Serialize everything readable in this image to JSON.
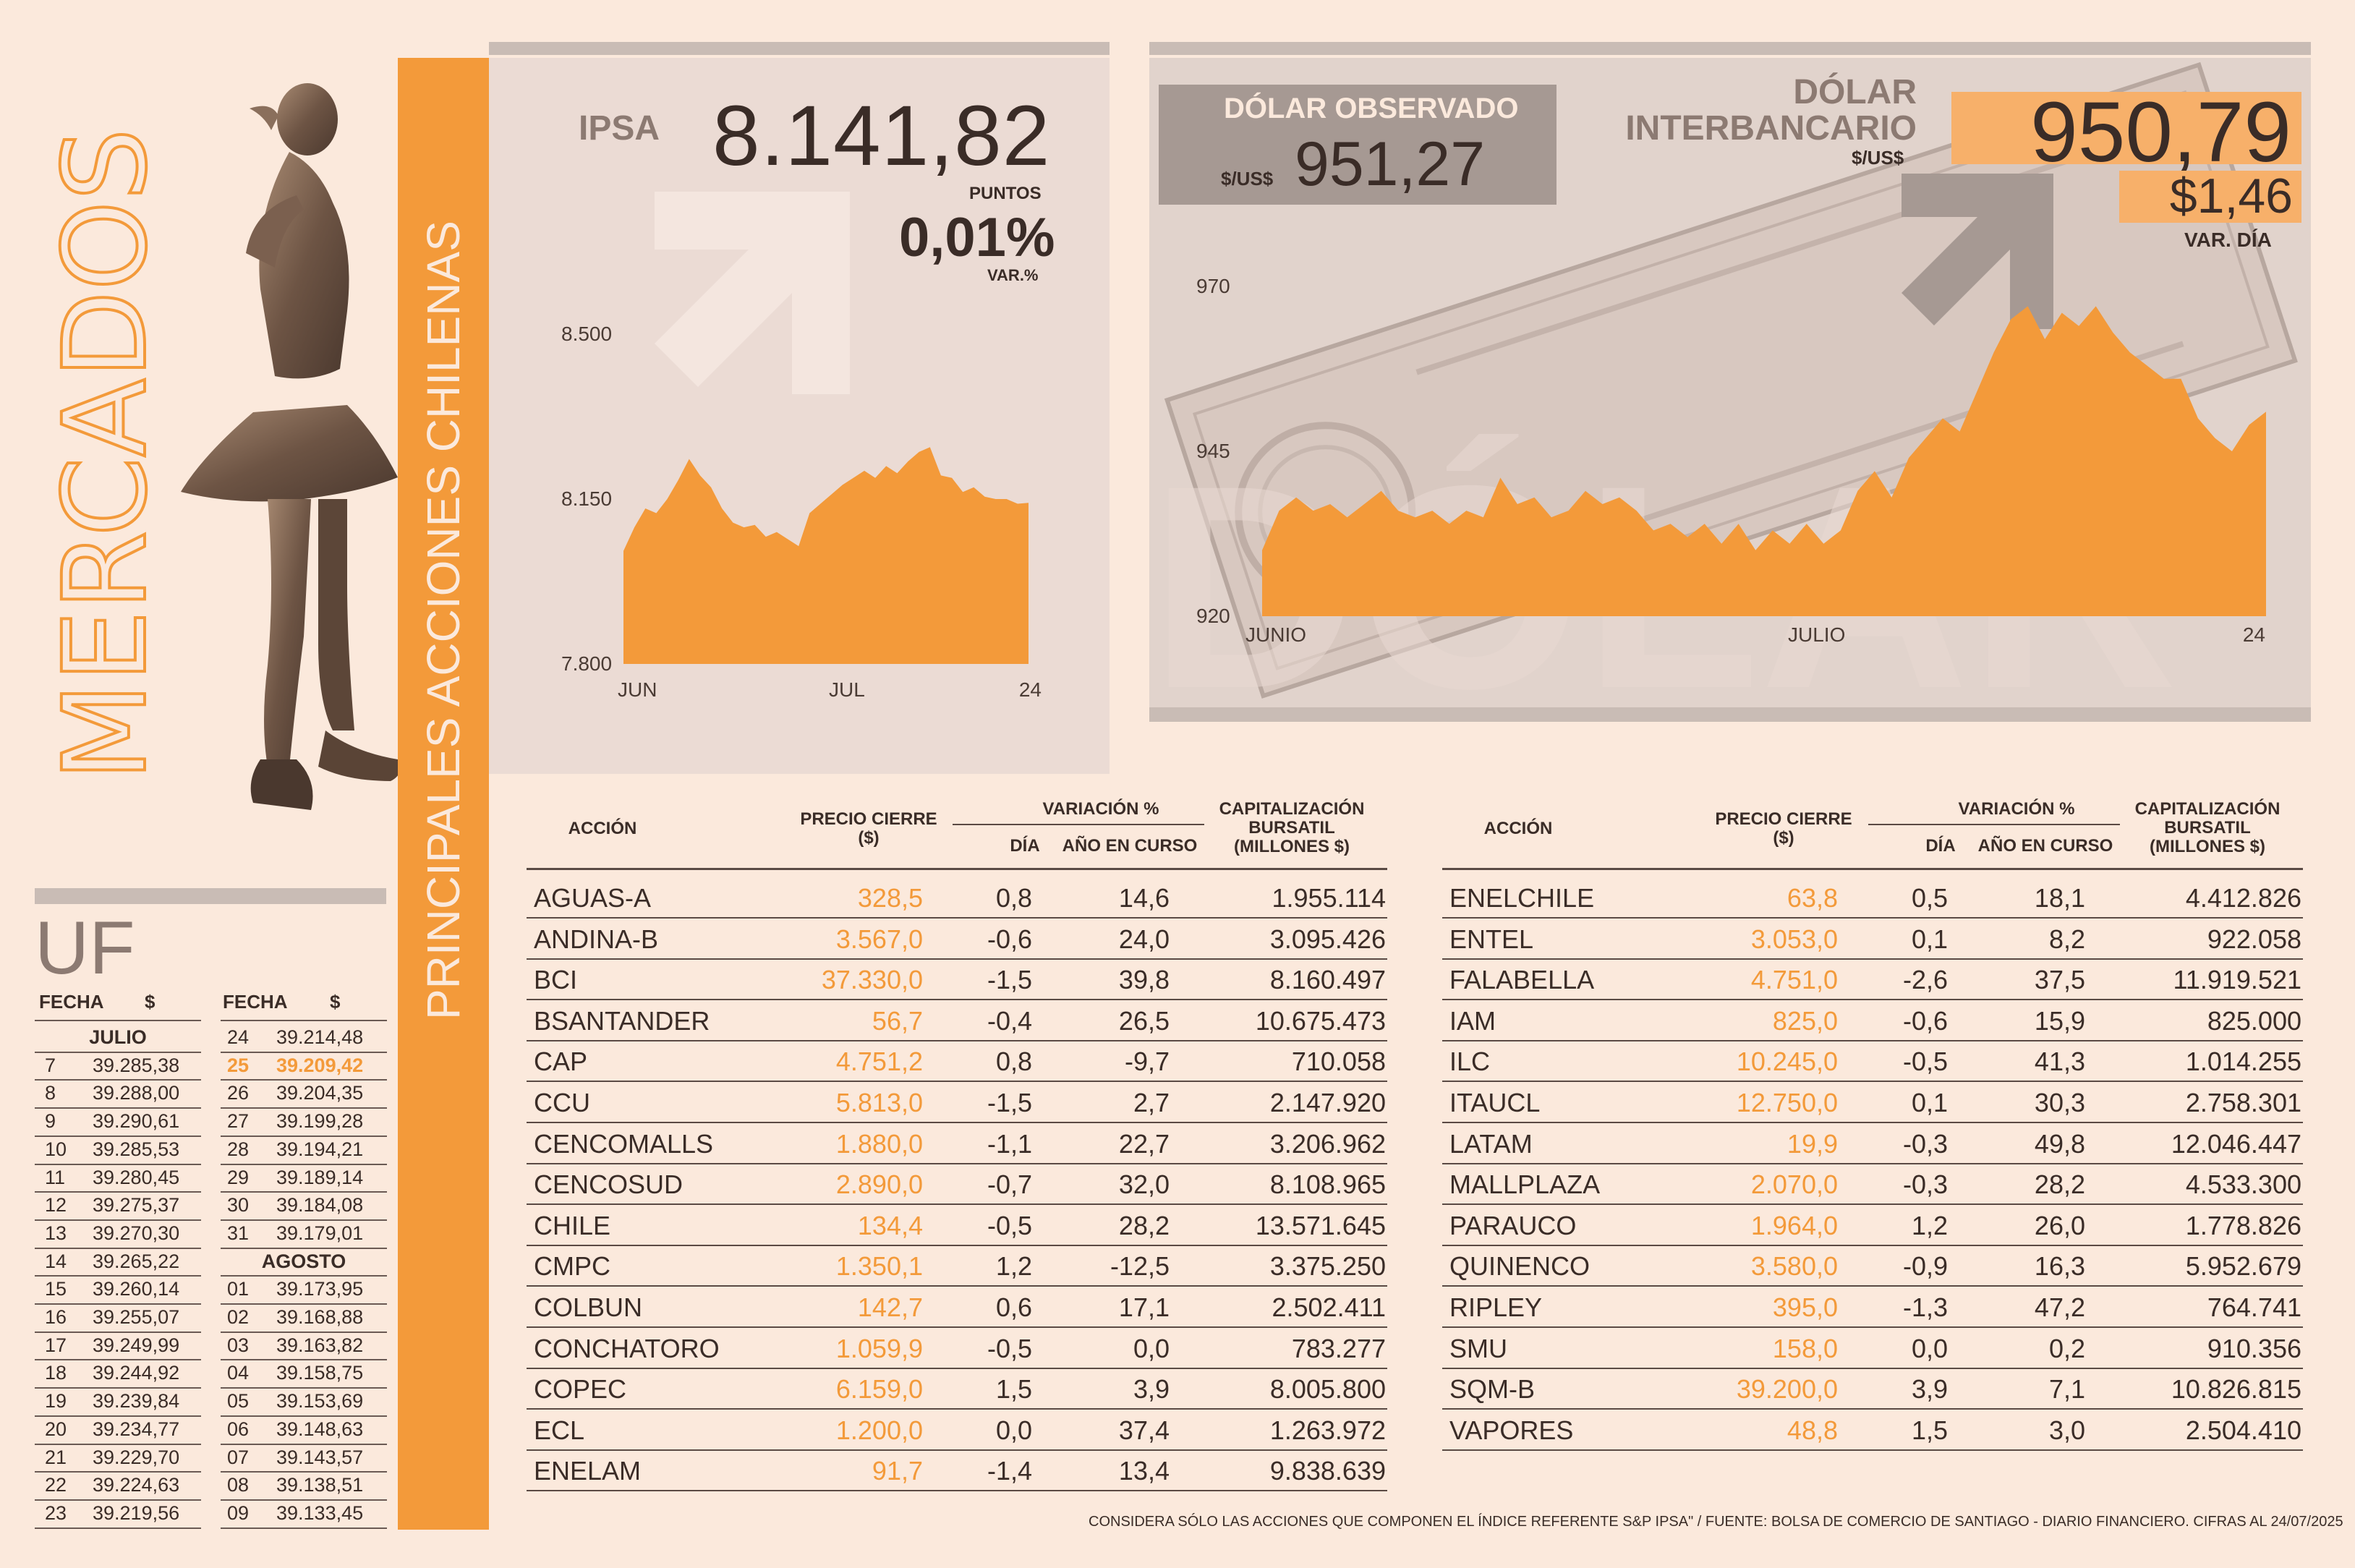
{
  "section": {
    "brand": "MERCADOS",
    "vertical_title": "PRINCIPALES ACCIONES CHILENAS"
  },
  "ipsa": {
    "label": "IPSA",
    "value": "8.141,82",
    "unit": "PUNTOS",
    "var": "0,01%",
    "var_label": "VAR.%"
  },
  "dolar": {
    "observado_title": "DÓLAR OBSERVADO",
    "observado_unit": "$/US$",
    "observado_value": "951,27",
    "inter_title_1": "DÓLAR",
    "inter_title_2": "INTERBANCARIO",
    "inter_unit": "$/US$",
    "inter_value": "950,79",
    "inter_var": "$1,46",
    "inter_var_label": "VAR. DÍA",
    "watermark": "DÓLAR"
  },
  "chart_data": [
    {
      "type": "area",
      "series_name": "IPSA",
      "yticks": [
        "8.500",
        "8.150",
        "7.800"
      ],
      "ylim": [
        7800,
        8500
      ],
      "xticks": [
        "JUN",
        "JUL",
        "24"
      ],
      "values": [
        8040,
        8090,
        8130,
        8120,
        8150,
        8190,
        8235,
        8200,
        8175,
        8130,
        8100,
        8090,
        8095,
        8070,
        8080,
        8065,
        8050,
        8120,
        8140,
        8160,
        8180,
        8195,
        8210,
        8195,
        8220,
        8205,
        8230,
        8250,
        8260,
        8200,
        8195,
        8165,
        8175,
        8155,
        8150,
        8150,
        8140,
        8142
      ],
      "color": "#f39a3a"
    },
    {
      "type": "area",
      "series_name": "Dólar",
      "yticks": [
        "970",
        "945",
        "920"
      ],
      "ylim": [
        920,
        970
      ],
      "xticks": [
        "JUNIO",
        "JULIO",
        "24"
      ],
      "values": [
        930,
        936,
        938,
        936,
        937,
        935,
        937,
        939,
        936,
        935,
        936,
        934,
        936,
        935,
        941,
        937,
        938,
        935,
        936,
        939,
        937,
        938,
        936,
        933,
        934,
        932,
        934,
        931,
        934,
        930,
        933,
        931,
        934,
        931,
        933,
        939,
        942,
        938,
        944,
        947,
        950,
        948,
        954,
        960,
        965,
        967,
        962,
        966,
        964,
        967,
        963,
        960,
        958,
        956,
        956,
        950,
        947,
        945,
        949,
        951
      ],
      "color": "#f39a3a"
    }
  ],
  "stocks": {
    "headers": {
      "accion": "ACCIÓN",
      "precio": "PRECIO CIERRE ($)",
      "variacion": "VARIACIÓN %",
      "dia": "DÍA",
      "anio": "AÑO EN CURSO",
      "cap": "CAPITALIZACIÓN BURSATIL (MILLONES $)"
    },
    "left": [
      {
        "name": "AGUAS-A",
        "price": "328,5",
        "day": "0,8",
        "ytd": "14,6",
        "cap": "1.955.114"
      },
      {
        "name": "ANDINA-B",
        "price": "3.567,0",
        "day": "-0,6",
        "ytd": "24,0",
        "cap": "3.095.426"
      },
      {
        "name": "BCI",
        "price": "37.330,0",
        "day": "-1,5",
        "ytd": "39,8",
        "cap": "8.160.497"
      },
      {
        "name": "BSANTANDER",
        "price": "56,7",
        "day": "-0,4",
        "ytd": "26,5",
        "cap": "10.675.473"
      },
      {
        "name": "CAP",
        "price": "4.751,2",
        "day": "0,8",
        "ytd": "-9,7",
        "cap": "710.058"
      },
      {
        "name": "CCU",
        "price": "5.813,0",
        "day": "-1,5",
        "ytd": "2,7",
        "cap": "2.147.920"
      },
      {
        "name": "CENCOMALLS",
        "price": "1.880,0",
        "day": "-1,1",
        "ytd": "22,7",
        "cap": "3.206.962"
      },
      {
        "name": "CENCOSUD",
        "price": "2.890,0",
        "day": "-0,7",
        "ytd": "32,0",
        "cap": "8.108.965"
      },
      {
        "name": "CHILE",
        "price": "134,4",
        "day": "-0,5",
        "ytd": "28,2",
        "cap": "13.571.645"
      },
      {
        "name": "CMPC",
        "price": "1.350,1",
        "day": "1,2",
        "ytd": "-12,5",
        "cap": "3.375.250"
      },
      {
        "name": "COLBUN",
        "price": "142,7",
        "day": "0,6",
        "ytd": "17,1",
        "cap": "2.502.411"
      },
      {
        "name": "CONCHATORO",
        "price": "1.059,9",
        "day": "-0,5",
        "ytd": "0,0",
        "cap": "783.277"
      },
      {
        "name": "COPEC",
        "price": "6.159,0",
        "day": "1,5",
        "ytd": "3,9",
        "cap": "8.005.800"
      },
      {
        "name": "ECL",
        "price": "1.200,0",
        "day": "0,0",
        "ytd": "37,4",
        "cap": "1.263.972"
      },
      {
        "name": "ENELAM",
        "price": "91,7",
        "day": "-1,4",
        "ytd": "13,4",
        "cap": "9.838.639"
      }
    ],
    "right": [
      {
        "name": "ENELCHILE",
        "price": "63,8",
        "day": "0,5",
        "ytd": "18,1",
        "cap": "4.412.826"
      },
      {
        "name": "ENTEL",
        "price": "3.053,0",
        "day": "0,1",
        "ytd": "8,2",
        "cap": "922.058"
      },
      {
        "name": "FALABELLA",
        "price": "4.751,0",
        "day": "-2,6",
        "ytd": "37,5",
        "cap": "11.919.521"
      },
      {
        "name": "IAM",
        "price": "825,0",
        "day": "-0,6",
        "ytd": "15,9",
        "cap": "825.000"
      },
      {
        "name": "ILC",
        "price": "10.245,0",
        "day": "-0,5",
        "ytd": "41,3",
        "cap": "1.014.255"
      },
      {
        "name": "ITAUCL",
        "price": "12.750,0",
        "day": "0,1",
        "ytd": "30,3",
        "cap": "2.758.301"
      },
      {
        "name": "LATAM",
        "price": "19,9",
        "day": "-0,3",
        "ytd": "49,8",
        "cap": "12.046.447"
      },
      {
        "name": "MALLPLAZA",
        "price": "2.070,0",
        "day": "-0,3",
        "ytd": "28,2",
        "cap": "4.533.300"
      },
      {
        "name": "PARAUCO",
        "price": "1.964,0",
        "day": "1,2",
        "ytd": "26,0",
        "cap": "1.778.826"
      },
      {
        "name": "QUINENCO",
        "price": "3.580,0",
        "day": "-0,9",
        "ytd": "16,3",
        "cap": "5.952.679"
      },
      {
        "name": "RIPLEY",
        "price": "395,0",
        "day": "-1,3",
        "ytd": "47,2",
        "cap": "764.741"
      },
      {
        "name": "SMU",
        "price": "158,0",
        "day": "0,0",
        "ytd": "0,2",
        "cap": "910.356"
      },
      {
        "name": "SQM-B",
        "price": "39.200,0",
        "day": "3,9",
        "ytd": "7,1",
        "cap": "10.826.815"
      },
      {
        "name": "VAPORES",
        "price": "48,8",
        "day": "1,5",
        "ytd": "3,0",
        "cap": "2.504.410"
      }
    ]
  },
  "uf": {
    "title": "UF",
    "head_fecha": "FECHA",
    "head_pesos": "$",
    "month_julio": "JULIO",
    "month_agosto": "AGOSTO",
    "col1": [
      {
        "d": "7",
        "v": "39.285,38"
      },
      {
        "d": "8",
        "v": "39.288,00"
      },
      {
        "d": "9",
        "v": "39.290,61"
      },
      {
        "d": "10",
        "v": "39.285,53"
      },
      {
        "d": "11",
        "v": "39.280,45"
      },
      {
        "d": "12",
        "v": "39.275,37"
      },
      {
        "d": "13",
        "v": "39.270,30"
      },
      {
        "d": "14",
        "v": "39.265,22"
      },
      {
        "d": "15",
        "v": "39.260,14"
      },
      {
        "d": "16",
        "v": "39.255,07"
      },
      {
        "d": "17",
        "v": "39.249,99"
      },
      {
        "d": "18",
        "v": "39.244,92"
      },
      {
        "d": "19",
        "v": "39.239,84"
      },
      {
        "d": "20",
        "v": "39.234,77"
      },
      {
        "d": "21",
        "v": "39.229,70"
      },
      {
        "d": "22",
        "v": "39.224,63"
      },
      {
        "d": "23",
        "v": "39.219,56"
      }
    ],
    "col2_julio": [
      {
        "d": "24",
        "v": "39.214,48"
      },
      {
        "d": "25",
        "v": "39.209,42",
        "highlight": true
      },
      {
        "d": "26",
        "v": "39.204,35"
      },
      {
        "d": "27",
        "v": "39.199,28"
      },
      {
        "d": "28",
        "v": "39.194,21"
      },
      {
        "d": "29",
        "v": "39.189,14"
      },
      {
        "d": "30",
        "v": "39.184,08"
      },
      {
        "d": "31",
        "v": "39.179,01"
      }
    ],
    "col2_agosto": [
      {
        "d": "01",
        "v": "39.173,95"
      },
      {
        "d": "02",
        "v": "39.168,88"
      },
      {
        "d": "03",
        "v": "39.163,82"
      },
      {
        "d": "04",
        "v": "39.158,75"
      },
      {
        "d": "05",
        "v": "39.153,69"
      },
      {
        "d": "06",
        "v": "39.148,63"
      },
      {
        "d": "07",
        "v": "39.143,57"
      },
      {
        "d": "08",
        "v": "39.138,51"
      },
      {
        "d": "09",
        "v": "39.133,45"
      }
    ]
  },
  "footnote": "CONSIDERA SÓLO LAS ACCIONES QUE COMPONEN EL ÍNDICE REFERENTE S&P IPSA\" / FUENTE: BOLSA DE COMERCIO DE SANTIAGO - DIARIO FINANCIERO. CIFRAS AL 24/07/2025"
}
